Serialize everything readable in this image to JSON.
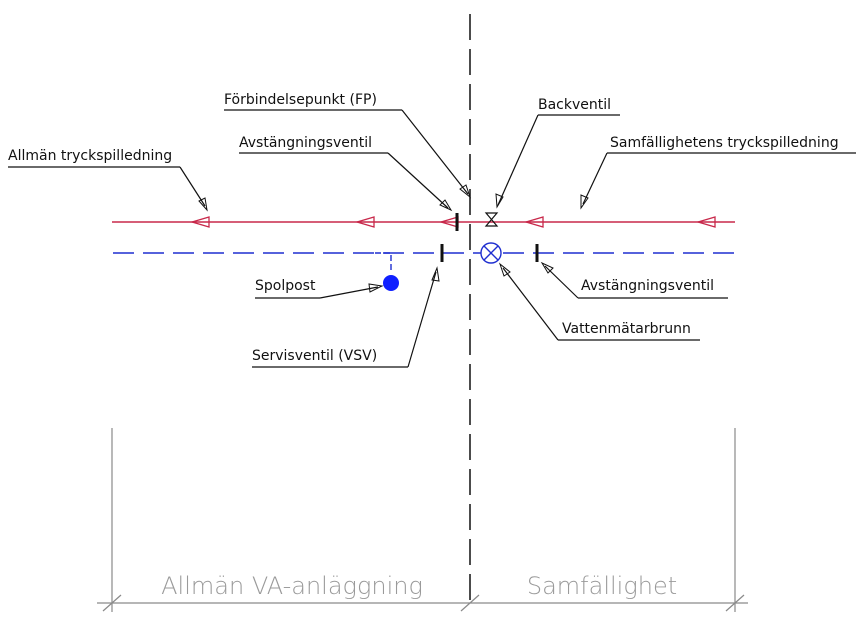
{
  "labels": {
    "forbindelsepunkt": "Förbindelsepunkt (FP)",
    "backventil": "Backventil",
    "avstangningsventil_left": "Avstängningsventil",
    "allman_tryckspilledning": "Allmän tryckspilledning",
    "samfallighetens_tryckspilledning": "Samfällighetens tryckspilledning",
    "spolpost": "Spolpost",
    "avstangningsventil_right": "Avstängningsventil",
    "vattenmatarbrunn": "Vattenmätarbrunn",
    "servisventil": "Servisventil (VSV)"
  },
  "zones": {
    "left": "Allmän VA-anläggning",
    "right": "Samfällighet"
  },
  "colors": {
    "pressure_line": "#c8284a",
    "water_line": "#1f2fd0",
    "spolpost": "#1020ff",
    "ink": "#111111",
    "dimension": "#8a8a8a"
  }
}
